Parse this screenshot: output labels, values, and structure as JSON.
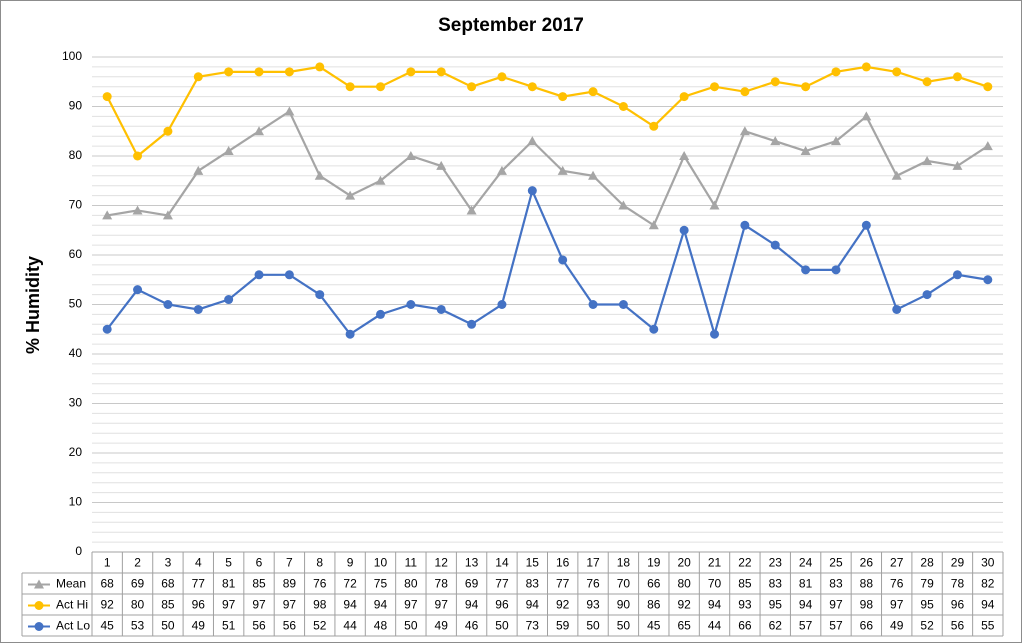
{
  "chart_data": {
    "type": "line",
    "title": "September 2017",
    "y_label": "% Humidity",
    "categories": [
      "1",
      "2",
      "3",
      "4",
      "5",
      "6",
      "7",
      "8",
      "9",
      "10",
      "11",
      "12",
      "13",
      "14",
      "15",
      "16",
      "17",
      "18",
      "19",
      "20",
      "21",
      "22",
      "23",
      "24",
      "25",
      "26",
      "27",
      "28",
      "29",
      "30"
    ],
    "series": [
      {
        "name": "Mean",
        "color": "#a5a5a5",
        "marker": "triangle",
        "values": [
          68,
          69,
          68,
          77,
          81,
          85,
          89,
          76,
          72,
          75,
          80,
          78,
          69,
          77,
          83,
          77,
          76,
          70,
          66,
          80,
          70,
          85,
          83,
          81,
          83,
          88,
          76,
          79,
          78,
          82
        ]
      },
      {
        "name": "Act Hi",
        "color": "#ffc000",
        "marker": "circle",
        "values": [
          92,
          80,
          85,
          96,
          97,
          97,
          97,
          98,
          94,
          94,
          97,
          97,
          94,
          96,
          94,
          92,
          93,
          90,
          86,
          92,
          94,
          93,
          95,
          94,
          97,
          98,
          97,
          95,
          96,
          94
        ]
      },
      {
        "name": "Act Lo",
        "color": "#4472c4",
        "marker": "circle",
        "values": [
          45,
          53,
          50,
          49,
          51,
          56,
          56,
          52,
          44,
          48,
          50,
          49,
          46,
          50,
          73,
          59,
          50,
          50,
          45,
          65,
          44,
          66,
          62,
          57,
          57,
          66,
          49,
          52,
          56,
          55
        ]
      }
    ],
    "ylim": [
      0,
      100
    ],
    "yticks": [
      0,
      10,
      20,
      30,
      40,
      50,
      60,
      70,
      80,
      90,
      100
    ],
    "grid": true,
    "legend": "data-table"
  }
}
